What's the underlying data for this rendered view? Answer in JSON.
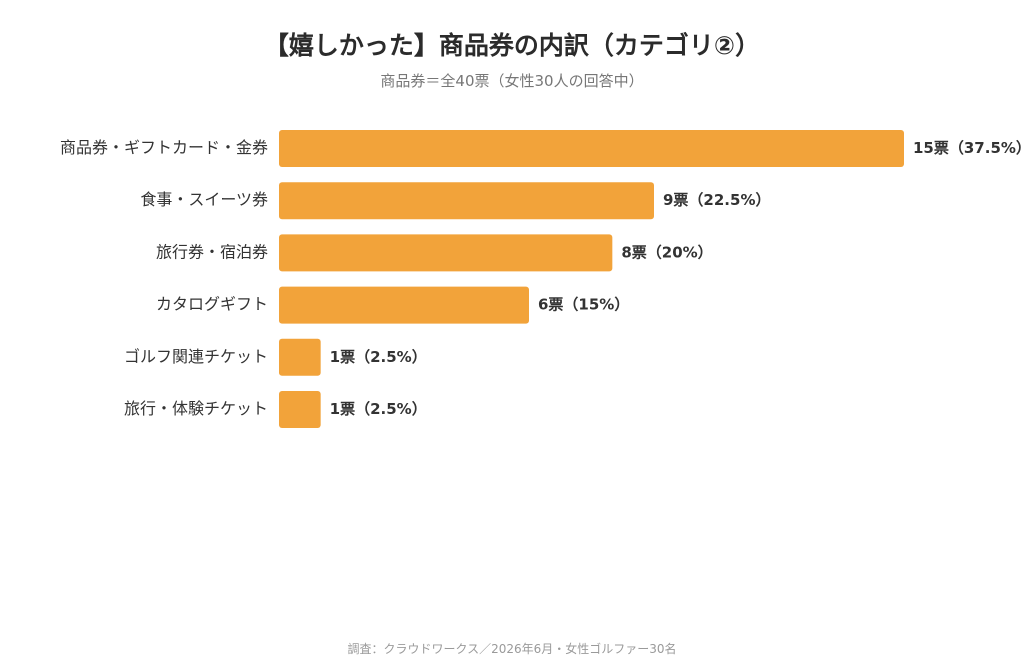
{
  "chart_data": {
    "type": "bar",
    "orientation": "horizontal",
    "title": "【嬉しかった】商品券の内訳（カテゴリ②）",
    "subtitle": "商品券＝全40票（女性30人の回答中）",
    "categories": [
      "商品券・ギフトカード・金券",
      "食事・スイーツ券",
      "旅行券・宿泊券",
      "カタログギフト",
      "ゴルフ関連チケット",
      "旅行・体験チケット"
    ],
    "values": [
      15,
      9,
      8,
      6,
      1,
      1
    ],
    "data_labels": [
      "15票（37.5%）",
      "9票（22.5%）",
      "8票（20%）",
      "6票（15%）",
      "1票（2.5%）",
      "1票（2.5%）"
    ],
    "xlim": [
      0,
      15
    ],
    "grid": false,
    "legend": "none",
    "bar_color": "#f2a33a"
  },
  "source": "調査：クラウドワークス／2026年6月・女性ゴルファー30名"
}
